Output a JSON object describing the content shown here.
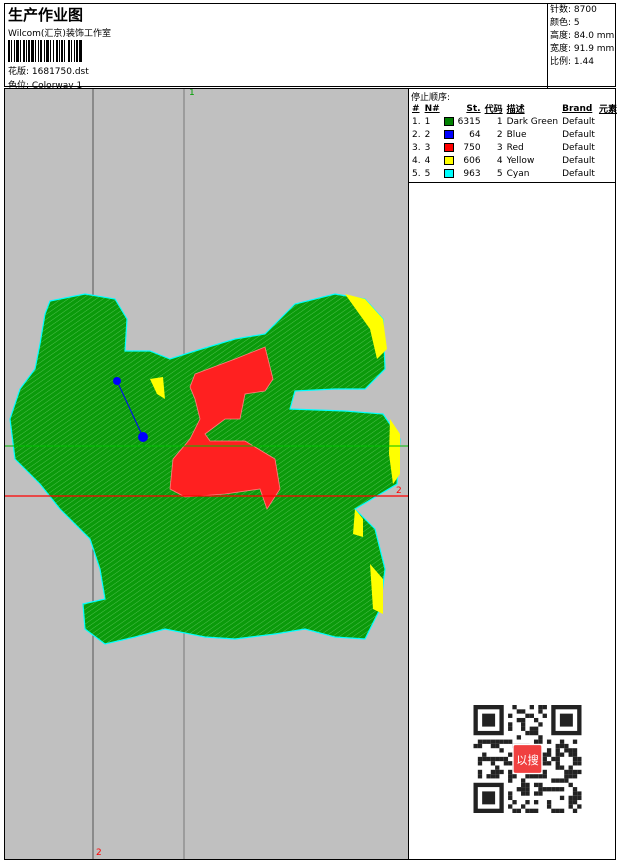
{
  "header": {
    "title": "生产作业图",
    "company": "Wilcom(汇京)装饰工作室",
    "design_file": "花版: 1681750.dst",
    "colorway": "色位: Colorway 1"
  },
  "stats": {
    "stitches": "针数: 8700",
    "colors": "颜色: 5",
    "height": "高度: 84.0 mm",
    "width": "宽度: 91.9 mm",
    "scale": "比例: 1.44"
  },
  "stop_sequence": {
    "title": "停止顺序:",
    "headers": [
      "#",
      "N#",
      "St.",
      "代码",
      "描述",
      "Brand",
      "元素"
    ],
    "rows": [
      {
        "idx": "1.",
        "n": "1",
        "color": "#008000",
        "st": "6315",
        "code": "1",
        "desc": "Dark Green",
        "brand": "Default"
      },
      {
        "idx": "2.",
        "n": "2",
        "color": "#0000ff",
        "st": "64",
        "code": "2",
        "desc": "Blue",
        "brand": "Default"
      },
      {
        "idx": "3.",
        "n": "3",
        "color": "#ff0000",
        "st": "750",
        "code": "3",
        "desc": "Red",
        "brand": "Default"
      },
      {
        "idx": "4.",
        "n": "4",
        "color": "#ffff00",
        "st": "606",
        "code": "4",
        "desc": "Yellow",
        "brand": "Default"
      },
      {
        "idx": "5.",
        "n": "5",
        "color": "#00ffff",
        "st": "963",
        "code": "5",
        "desc": "Cyan",
        "brand": "Default"
      }
    ]
  },
  "canvas": {
    "marker_top": "1",
    "marker_right": "2",
    "marker_bottom": "2"
  },
  "qr": {
    "stamp_text": "以图搜版"
  }
}
